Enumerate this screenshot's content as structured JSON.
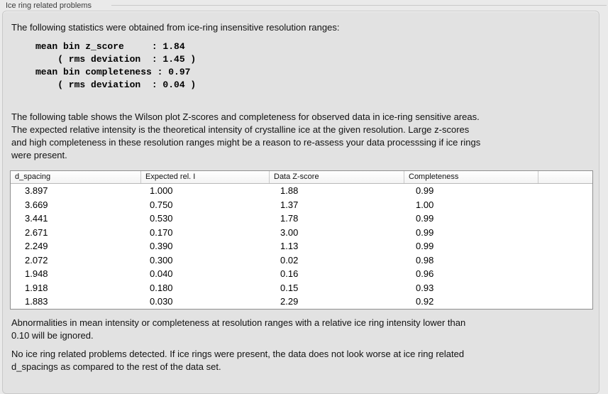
{
  "section": {
    "title": "Ice ring related problems"
  },
  "intro": "The following statistics were obtained from ice-ring insensitive resolution ranges:",
  "stats_block": "mean bin z_score     : 1.84\n    ( rms deviation  : 1.45 )\nmean bin completeness : 0.97\n    ( rms deviation  : 0.04 )",
  "description": "The following table shows the Wilson plot Z-scores and completeness for observed data in ice-ring sensitive areas.\nThe expected relative intensity is the theoretical intensity of crystalline ice at the given resolution. Large z-scores\nand high completeness in these resolution ranges might be a reason to re-assess your data processsing if ice rings\nwere present.",
  "table": {
    "columns": [
      "d_spacing",
      "Expected rel. I",
      "Data Z-score",
      "Completeness",
      ""
    ],
    "rows": [
      [
        "3.897",
        "1.000",
        "1.88",
        "0.99"
      ],
      [
        "3.669",
        "0.750",
        "1.37",
        "1.00"
      ],
      [
        "3.441",
        "0.530",
        "1.78",
        "0.99"
      ],
      [
        "2.671",
        "0.170",
        "3.00",
        "0.99"
      ],
      [
        "2.249",
        "0.390",
        "1.13",
        "0.99"
      ],
      [
        "2.072",
        "0.300",
        "0.02",
        "0.98"
      ],
      [
        "1.948",
        "0.040",
        "0.16",
        "0.96"
      ],
      [
        "1.918",
        "0.180",
        "0.15",
        "0.93"
      ],
      [
        "1.883",
        "0.030",
        "2.29",
        "0.92"
      ]
    ]
  },
  "note_ignore": "Abnormalities in mean intensity or completeness at resolution ranges with a relative ice ring intensity lower than\n0.10 will be ignored.",
  "conclusion": "No ice ring related problems detected. If ice rings were present, the data does not look worse at ice ring related\nd_spacings as compared to the rest of the data set.",
  "colors": {
    "background": "#eaeaea",
    "panel_background": "#e2e2e2",
    "table_background": "#ffffff",
    "table_border": "#8f8f8f",
    "text": "#111111"
  }
}
